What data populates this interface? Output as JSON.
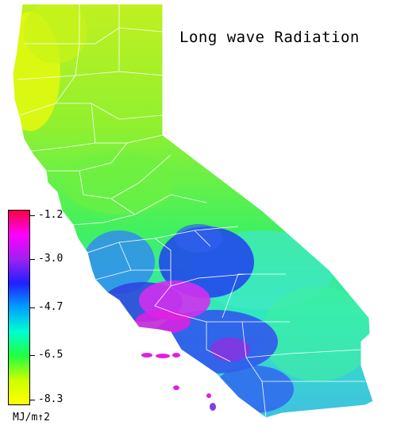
{
  "title": "Long wave Radiation",
  "legend": {
    "colors_top_to_bottom": [
      "#ff0040",
      "#ff00ff",
      "#a020f0",
      "#2020ff",
      "#00a0ff",
      "#00ffd0",
      "#20ff40",
      "#ccff00",
      "#ffff00"
    ],
    "ticks": [
      "-1.2",
      "-3.0",
      "-4.7",
      "-6.5",
      "-8.3"
    ],
    "unit": "MJ/m↑2"
  },
  "map": {
    "colors": {
      "north": "#a8f020",
      "northcoast": "#d8f810",
      "valley": "#60f040",
      "eastern": "#40f080",
      "cyan": "#30e8d0",
      "blue": "#3050f0",
      "magenta": "#d020f0",
      "border": "#ffffff"
    }
  }
}
